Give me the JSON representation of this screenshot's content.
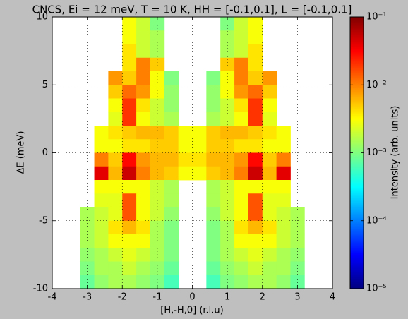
{
  "chart_data": {
    "type": "heatmap",
    "title": "CNCS, Ei = 12 meV, T = 10 K, HH = [-0.1,0.1], L = [-0.1,0.1]",
    "x_label": "[H,-H,0] (r.l.u)",
    "y_label": "ΔE (meV)",
    "colorbar_label": "Intensity (arb. units)",
    "colormap": "jet",
    "log_color": true,
    "grid": true,
    "xlim": [
      -4,
      4
    ],
    "ylim": [
      -10,
      10
    ],
    "xticks": [
      -4,
      -3,
      -2,
      -1,
      0,
      1,
      2,
      3,
      4
    ],
    "yticks": [
      -10,
      -5,
      0,
      5,
      10
    ],
    "clim": [
      1e-05,
      0.1
    ],
    "cticks": [
      {
        "value": 1e-05,
        "label": "10⁻⁵"
      },
      {
        "value": 0.0001,
        "label": "10⁻⁴"
      },
      {
        "value": 0.001,
        "label": "10⁻³"
      },
      {
        "value": 0.01,
        "label": "10⁻²"
      },
      {
        "value": 0.1,
        "label": "10⁻¹"
      }
    ],
    "x": [
      -3.8,
      -3.4,
      -3.0,
      -2.6,
      -2.2,
      -1.8,
      -1.4,
      -1.0,
      -0.6,
      -0.2,
      0.2,
      0.6,
      1.0,
      1.4,
      1.8,
      2.2,
      2.6,
      3.0,
      3.4,
      3.8
    ],
    "y": [
      9.5,
      8.5,
      7.5,
      6.5,
      5.5,
      4.5,
      3.5,
      2.5,
      1.5,
      0.5,
      -0.5,
      -1.5,
      -2.5,
      -3.5,
      -4.5,
      -5.5,
      -6.5,
      -7.5,
      -8.5,
      -9.5
    ],
    "values": [
      [
        null,
        null,
        null,
        null,
        null,
        0.003,
        0.002,
        0.001,
        null,
        null,
        null,
        null,
        0.001,
        0.002,
        0.003,
        null,
        null,
        null,
        null,
        null
      ],
      [
        null,
        null,
        null,
        null,
        null,
        0.003,
        0.002,
        0.0015,
        null,
        null,
        null,
        null,
        0.0015,
        0.002,
        0.003,
        null,
        null,
        null,
        null,
        null
      ],
      [
        null,
        null,
        null,
        null,
        null,
        0.004,
        0.002,
        0.0015,
        null,
        null,
        null,
        null,
        0.0015,
        0.002,
        0.004,
        null,
        null,
        null,
        null,
        null
      ],
      [
        null,
        null,
        null,
        null,
        null,
        0.004,
        0.01,
        0.005,
        null,
        null,
        null,
        null,
        0.005,
        0.01,
        0.004,
        null,
        null,
        null,
        null,
        null
      ],
      [
        null,
        null,
        null,
        null,
        0.008,
        0.005,
        0.01,
        0.003,
        0.001,
        null,
        null,
        0.001,
        0.003,
        0.01,
        0.005,
        0.008,
        null,
        null,
        null,
        null
      ],
      [
        null,
        null,
        null,
        null,
        0.005,
        0.012,
        0.008,
        0.003,
        0.0012,
        null,
        null,
        0.0012,
        0.003,
        0.008,
        0.012,
        0.005,
        null,
        null,
        null,
        null
      ],
      [
        null,
        null,
        null,
        null,
        0.003,
        0.02,
        0.004,
        0.002,
        0.0012,
        null,
        null,
        0.0012,
        0.002,
        0.004,
        0.02,
        0.003,
        null,
        null,
        null,
        null
      ],
      [
        null,
        null,
        null,
        null,
        0.0025,
        0.02,
        0.003,
        0.002,
        0.0015,
        null,
        null,
        0.0015,
        0.002,
        0.003,
        0.02,
        0.0025,
        null,
        null,
        null,
        null
      ],
      [
        null,
        null,
        null,
        0.003,
        0.004,
        0.005,
        0.006,
        0.006,
        0.005,
        0.003,
        0.003,
        0.005,
        0.006,
        0.006,
        0.005,
        0.004,
        0.003,
        null,
        null,
        null
      ],
      [
        null,
        null,
        null,
        0.003,
        0.003,
        0.004,
        0.004,
        0.005,
        0.005,
        0.003,
        0.003,
        0.005,
        0.005,
        0.004,
        0.004,
        0.003,
        0.003,
        null,
        null,
        null
      ],
      [
        null,
        null,
        null,
        0.01,
        0.005,
        0.03,
        0.008,
        0.006,
        0.006,
        0.004,
        0.004,
        0.006,
        0.006,
        0.008,
        0.03,
        0.005,
        0.01,
        null,
        null,
        null
      ],
      [
        null,
        null,
        null,
        0.04,
        0.006,
        0.05,
        0.01,
        0.006,
        0.005,
        0.003,
        0.003,
        0.005,
        0.006,
        0.01,
        0.05,
        0.006,
        0.04,
        null,
        null,
        null
      ],
      [
        null,
        null,
        null,
        0.003,
        0.003,
        0.003,
        0.003,
        0.002,
        0.0015,
        null,
        null,
        0.0015,
        0.002,
        0.003,
        0.003,
        0.003,
        0.003,
        null,
        null,
        null
      ],
      [
        null,
        null,
        null,
        0.0025,
        0.0025,
        0.015,
        0.003,
        0.002,
        0.0015,
        null,
        null,
        0.0015,
        0.002,
        0.003,
        0.015,
        0.0025,
        0.0025,
        null,
        null,
        null
      ],
      [
        null,
        null,
        0.0015,
        0.002,
        0.0025,
        0.015,
        0.003,
        0.002,
        0.0012,
        null,
        null,
        0.0012,
        0.002,
        0.003,
        0.015,
        0.0025,
        0.002,
        0.0015,
        null,
        null
      ],
      [
        null,
        null,
        0.0015,
        0.002,
        0.004,
        0.006,
        0.004,
        0.0015,
        0.001,
        null,
        null,
        0.001,
        0.0015,
        0.004,
        0.006,
        0.004,
        0.002,
        0.0015,
        null,
        null
      ],
      [
        null,
        null,
        0.0015,
        0.002,
        0.003,
        0.003,
        0.003,
        0.0015,
        0.001,
        null,
        null,
        0.001,
        0.0015,
        0.003,
        0.003,
        0.003,
        0.002,
        0.0015,
        null,
        null
      ],
      [
        null,
        null,
        0.0012,
        0.0015,
        0.002,
        0.0025,
        0.002,
        0.0015,
        0.001,
        null,
        null,
        0.001,
        0.0015,
        0.002,
        0.0025,
        0.002,
        0.0015,
        0.0012,
        null,
        null
      ],
      [
        null,
        null,
        0.001,
        0.0015,
        0.0015,
        0.002,
        0.0015,
        0.0012,
        0.0008,
        null,
        null,
        0.0008,
        0.0012,
        0.0015,
        0.002,
        0.0015,
        0.0015,
        0.001,
        null,
        null
      ],
      [
        null,
        null,
        0.0008,
        0.0012,
        0.0015,
        0.0015,
        0.0012,
        0.001,
        0.0006,
        null,
        null,
        0.0006,
        0.001,
        0.0012,
        0.0015,
        0.0015,
        0.0012,
        0.0008,
        null,
        null
      ]
    ]
  }
}
